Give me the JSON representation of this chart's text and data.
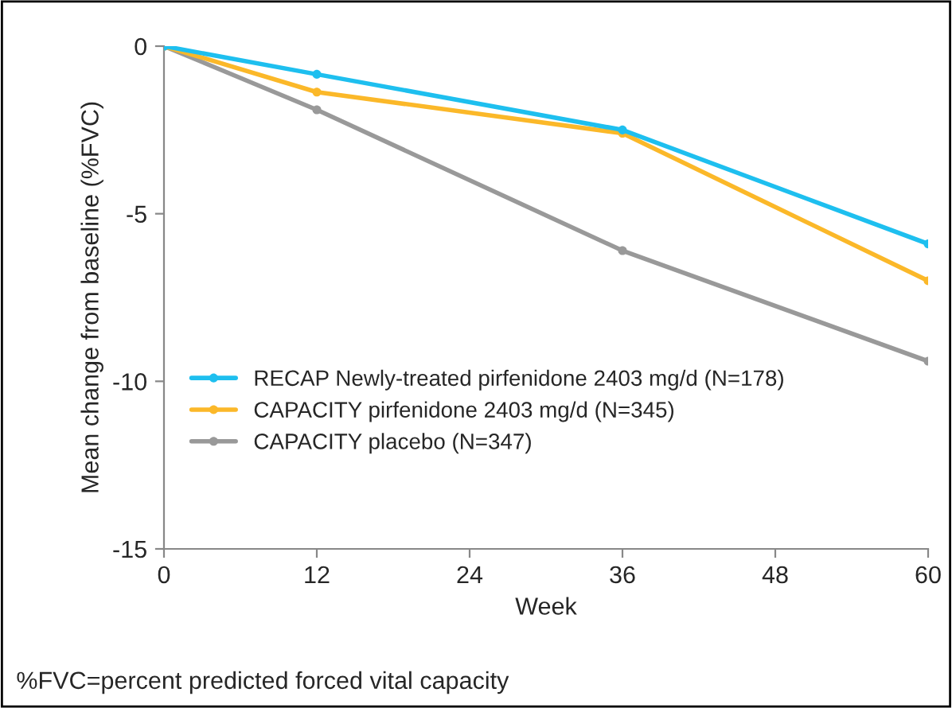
{
  "chart_data": {
    "type": "line",
    "xlabel": "Week",
    "ylabel": "Mean change from baseline (%FVC)",
    "x": [
      0,
      12,
      36,
      60
    ],
    "series": [
      {
        "name": "RECAP Newly-treated pirfenidone 2403 mg/d (N=178)",
        "color": "#1ebfef",
        "values": [
          0,
          -0.84,
          -2.5,
          -5.9
        ]
      },
      {
        "name": "CAPACITY pirfenidone 2403 mg/d (N=345)",
        "color": "#fbb829",
        "values": [
          0,
          -1.37,
          -2.6,
          -7.0
        ]
      },
      {
        "name": "CAPACITY placebo (N=347)",
        "color": "#999999",
        "values": [
          0,
          -1.9,
          -6.1,
          -9.4
        ]
      }
    ],
    "xlim": [
      0,
      60
    ],
    "xticks": [
      0,
      12,
      24,
      36,
      48,
      60
    ],
    "ylim": [
      -15,
      0
    ],
    "yticks": [
      -15,
      -10,
      -5,
      0
    ],
    "marker": "circle",
    "line_style": "solid",
    "grid": false,
    "legend": "bottom left",
    "annotations": [
      "%FVC=percent predicted forced vital capacity"
    ]
  }
}
